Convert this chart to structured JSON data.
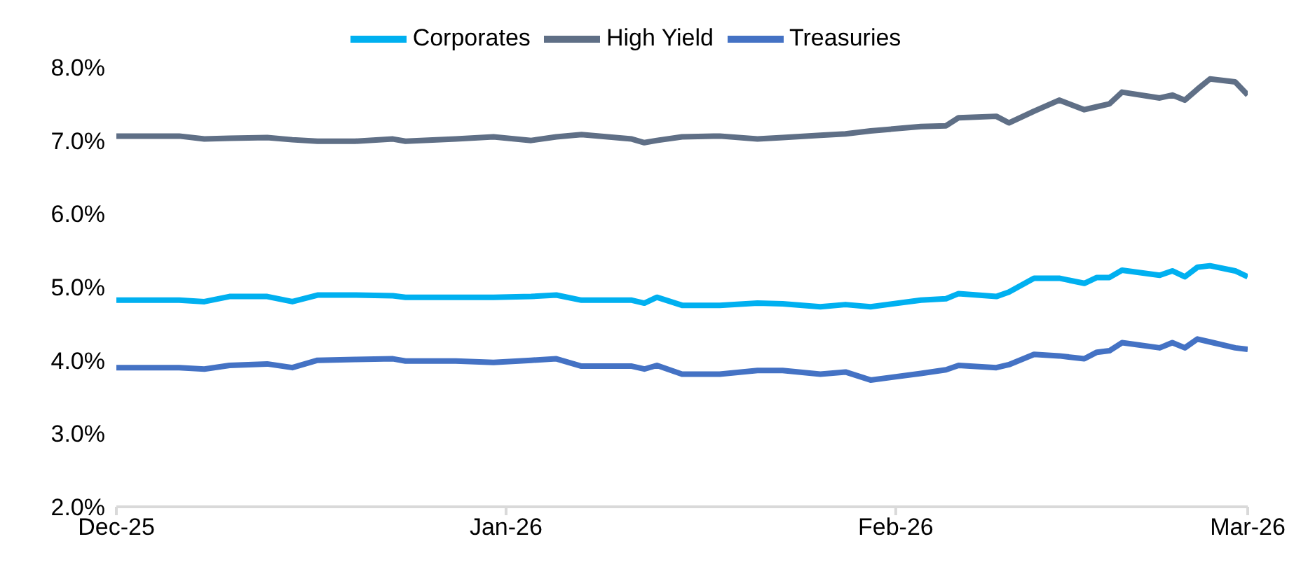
{
  "chart_data": {
    "type": "line",
    "x": [
      "2025-12-01",
      "2025-12-06",
      "2025-12-08",
      "2025-12-10",
      "2025-12-13",
      "2025-12-15",
      "2025-12-17",
      "2025-12-20",
      "2025-12-23",
      "2025-12-24",
      "2025-12-28",
      "2025-12-31",
      "2026-01-03",
      "2026-01-05",
      "2026-01-07",
      "2026-01-11",
      "2026-01-12",
      "2026-01-13",
      "2026-01-15",
      "2026-01-18",
      "2026-01-21",
      "2026-01-23",
      "2026-01-26",
      "2026-01-28",
      "2026-01-30",
      "2026-02-03",
      "2026-02-05",
      "2026-02-06",
      "2026-02-09",
      "2026-02-10",
      "2026-02-12",
      "2026-02-14",
      "2026-02-16",
      "2026-02-17",
      "2026-02-18",
      "2026-02-19",
      "2026-02-22",
      "2026-02-23",
      "2026-02-24",
      "2026-02-25",
      "2026-02-26",
      "2026-02-28",
      "2026-03-01"
    ],
    "series": [
      {
        "name": "Treasuries",
        "color": "#4472c4",
        "values": [
          3.9,
          3.9,
          3.88,
          3.93,
          3.95,
          3.9,
          4.0,
          4.01,
          4.02,
          3.99,
          3.99,
          3.97,
          4.0,
          4.02,
          3.92,
          3.92,
          3.88,
          3.93,
          3.81,
          3.81,
          3.86,
          3.86,
          3.81,
          3.84,
          3.73,
          3.82,
          3.87,
          3.93,
          3.9,
          3.94,
          4.08,
          4.06,
          4.02,
          4.11,
          4.13,
          4.24,
          4.17,
          4.24,
          4.17,
          4.29,
          4.25,
          4.17,
          4.15
        ]
      },
      {
        "name": "Corporates",
        "color": "#00b0f0",
        "values": [
          4.82,
          4.82,
          4.8,
          4.87,
          4.87,
          4.8,
          4.89,
          4.89,
          4.88,
          4.86,
          4.86,
          4.86,
          4.87,
          4.89,
          4.82,
          4.82,
          4.78,
          4.86,
          4.75,
          4.75,
          4.78,
          4.77,
          4.73,
          4.76,
          4.73,
          4.82,
          4.84,
          4.91,
          4.87,
          4.93,
          5.12,
          5.12,
          5.05,
          5.13,
          5.13,
          5.23,
          5.16,
          5.22,
          5.14,
          5.27,
          5.29,
          5.22,
          5.14
        ]
      },
      {
        "name": "High Yield",
        "color": "#5f6f86",
        "values": [
          7.06,
          7.06,
          7.02,
          7.03,
          7.04,
          7.01,
          6.99,
          6.99,
          7.02,
          6.99,
          7.02,
          7.05,
          7.0,
          7.05,
          7.08,
          7.02,
          6.97,
          7.0,
          7.05,
          7.06,
          7.02,
          7.04,
          7.07,
          7.09,
          7.13,
          7.19,
          7.2,
          7.31,
          7.33,
          7.24,
          7.4,
          7.55,
          7.42,
          7.46,
          7.5,
          7.66,
          7.58,
          7.62,
          7.55,
          7.7,
          7.84,
          7.8,
          7.62
        ]
      }
    ],
    "xlim": [
      "2025-12-01",
      "2026-03-01"
    ],
    "xticks": [
      {
        "value": "2025-12-01",
        "label": "Dec-25"
      },
      {
        "value": "2026-01-01",
        "label": "Jan-26"
      },
      {
        "value": "2026-02-01",
        "label": "Feb-26"
      },
      {
        "value": "2026-03-01",
        "label": "Mar-26"
      }
    ],
    "ylim": [
      2,
      8
    ],
    "yticks": [
      {
        "value": 2,
        "label": "2.0%"
      },
      {
        "value": 3,
        "label": "3.0%"
      },
      {
        "value": 4,
        "label": "4.0%"
      },
      {
        "value": 5,
        "label": "5.0%"
      },
      {
        "value": 6,
        "label": "6.0%"
      },
      {
        "value": 7,
        "label": "7.0%"
      },
      {
        "value": 8,
        "label": "8.0%"
      }
    ],
    "grid": false,
    "legend": "top",
    "marker": "none",
    "line_style": "solid"
  }
}
